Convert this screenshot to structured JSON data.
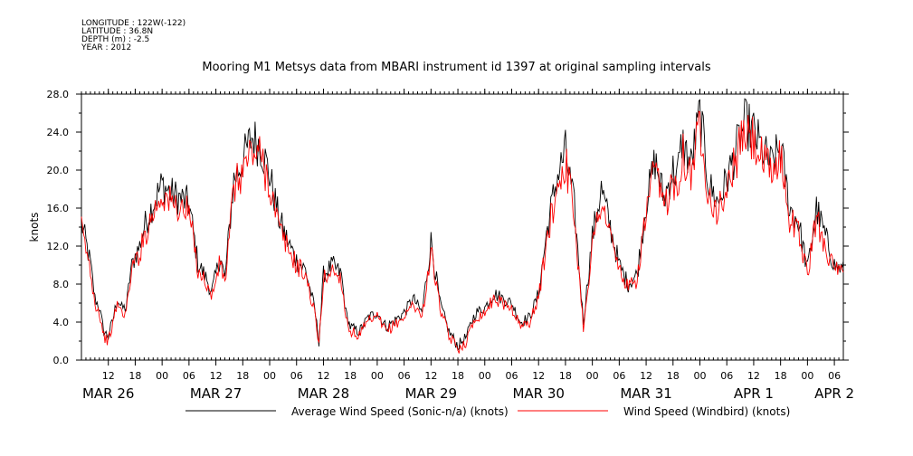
{
  "header": {
    "longitude": "LONGITUDE : 122W(-122)",
    "latitude": "LATITUDE : 36.8N",
    "depth": "DEPTH (m) : -2.5",
    "year": "YEAR : 2012"
  },
  "chart_data": {
    "type": "line",
    "title": "Mooring M1 Metsys data from MBARI instrument id 1397 at original sampling intervals",
    "ylabel": "knots",
    "xlabel": "",
    "ylim": [
      0,
      28
    ],
    "yticks": [
      "0.0",
      "4.0",
      "8.0",
      "12.0",
      "16.0",
      "20.0",
      "24.0",
      "28.0"
    ],
    "x_units": "hours since 2012-03-26 00:00",
    "xlim": [
      6,
      176
    ],
    "hour_ticks": [
      {
        "x": 12,
        "label": "12"
      },
      {
        "x": 18,
        "label": "18"
      },
      {
        "x": 24,
        "label": "00"
      },
      {
        "x": 30,
        "label": "06"
      },
      {
        "x": 36,
        "label": "12"
      },
      {
        "x": 42,
        "label": "18"
      },
      {
        "x": 48,
        "label": "00"
      },
      {
        "x": 54,
        "label": "06"
      },
      {
        "x": 60,
        "label": "12"
      },
      {
        "x": 66,
        "label": "18"
      },
      {
        "x": 72,
        "label": "00"
      },
      {
        "x": 78,
        "label": "06"
      },
      {
        "x": 84,
        "label": "12"
      },
      {
        "x": 90,
        "label": "18"
      },
      {
        "x": 96,
        "label": "00"
      },
      {
        "x": 102,
        "label": "06"
      },
      {
        "x": 108,
        "label": "12"
      },
      {
        "x": 114,
        "label": "18"
      },
      {
        "x": 120,
        "label": "00"
      },
      {
        "x": 126,
        "label": "06"
      },
      {
        "x": 132,
        "label": "12"
      },
      {
        "x": 138,
        "label": "18"
      },
      {
        "x": 144,
        "label": "00"
      },
      {
        "x": 150,
        "label": "06"
      },
      {
        "x": 156,
        "label": "12"
      },
      {
        "x": 162,
        "label": "18"
      },
      {
        "x": 168,
        "label": "00"
      },
      {
        "x": 174,
        "label": "06"
      }
    ],
    "date_labels": [
      {
        "x": 12,
        "label": "MAR 26"
      },
      {
        "x": 36,
        "label": "MAR 27"
      },
      {
        "x": 60,
        "label": "MAR 28"
      },
      {
        "x": 84,
        "label": "MAR 29"
      },
      {
        "x": 108,
        "label": "MAR 30"
      },
      {
        "x": 132,
        "label": "MAR 31"
      },
      {
        "x": 156,
        "label": "APR  1"
      },
      {
        "x": 174,
        "label": "APR  2"
      }
    ],
    "series": [
      {
        "name": "Average Wind Speed (Sonic-n/a) (knots)",
        "color": "#000000",
        "x": [
          6,
          8,
          9,
          10,
          11,
          12,
          13,
          14,
          15,
          16,
          17,
          18,
          19,
          20,
          22,
          24,
          26,
          28,
          30,
          32,
          34,
          35,
          36,
          37,
          38,
          40,
          42,
          44,
          46,
          48,
          50,
          52,
          54,
          56,
          58,
          59,
          60,
          62,
          64,
          65,
          66,
          67,
          68,
          70,
          72,
          74,
          76,
          78,
          80,
          82,
          84,
          86,
          88,
          90,
          92,
          93,
          94,
          96,
          98,
          100,
          102,
          104,
          106,
          108,
          110,
          112,
          114,
          116,
          118,
          120,
          122,
          124,
          126,
          128,
          130,
          132,
          134,
          136,
          138,
          139,
          140,
          142,
          144,
          146,
          148,
          150,
          152,
          154,
          156,
          158,
          160,
          162,
          164,
          166,
          168,
          170,
          172,
          174,
          176
        ],
        "values": [
          14.5,
          10.2,
          6.5,
          5.5,
          3.0,
          2.5,
          4.2,
          6.5,
          5.5,
          5.5,
          9.5,
          11.0,
          12.0,
          14.0,
          16.5,
          18.5,
          17.5,
          17.0,
          16.5,
          10.2,
          8.5,
          7.0,
          9.0,
          11.0,
          8.5,
          19.0,
          21.0,
          23.5,
          22.5,
          19.5,
          15.0,
          12.5,
          10.5,
          9.5,
          5.5,
          2.0,
          9.0,
          10.0,
          9.0,
          5.0,
          3.5,
          3.2,
          3.0,
          4.5,
          5.0,
          3.5,
          4.2,
          5.0,
          6.5,
          5.0,
          12.5,
          6.0,
          3.0,
          1.5,
          2.5,
          4.0,
          5.0,
          5.5,
          7.0,
          6.5,
          6.0,
          4.0,
          4.5,
          7.0,
          14.0,
          19.0,
          22.0,
          16.0,
          4.0,
          13.0,
          18.0,
          14.0,
          10.0,
          8.0,
          9.0,
          16.5,
          21.0,
          17.0,
          20.0,
          19.5,
          23.0,
          20.5,
          26.0,
          18.5,
          16.5,
          19.0,
          22.0,
          25.0,
          24.0,
          22.0,
          20.5,
          22.5,
          16.0,
          14.5,
          9.5,
          16.0,
          13.0,
          10.0,
          9.5
        ]
      },
      {
        "name": "Wind Speed (Windbird) (knots)",
        "color": "#ff0000",
        "x": [
          6,
          8,
          9,
          10,
          11,
          12,
          13,
          14,
          15,
          16,
          17,
          18,
          19,
          20,
          22,
          24,
          26,
          28,
          30,
          32,
          34,
          35,
          36,
          37,
          38,
          40,
          42,
          44,
          46,
          48,
          50,
          52,
          54,
          56,
          58,
          59,
          60,
          62,
          64,
          65,
          66,
          67,
          68,
          70,
          72,
          74,
          76,
          78,
          80,
          82,
          84,
          86,
          88,
          90,
          92,
          93,
          94,
          96,
          98,
          100,
          102,
          104,
          106,
          108,
          110,
          112,
          114,
          116,
          118,
          120,
          122,
          124,
          126,
          128,
          130,
          132,
          134,
          136,
          138,
          139,
          140,
          142,
          144,
          146,
          148,
          150,
          152,
          154,
          156,
          158,
          160,
          162,
          164,
          166,
          168,
          170,
          172,
          174,
          176
        ],
        "values": [
          13.8,
          9.5,
          6.0,
          5.0,
          2.5,
          2.0,
          3.8,
          6.0,
          5.0,
          5.0,
          9.0,
          10.5,
          11.2,
          13.0,
          15.5,
          17.5,
          16.5,
          16.0,
          15.5,
          9.6,
          8.0,
          6.5,
          8.5,
          10.4,
          8.0,
          18.0,
          20.0,
          22.0,
          21.5,
          18.5,
          14.0,
          11.8,
          10.0,
          9.0,
          5.0,
          1.6,
          8.5,
          9.5,
          8.5,
          4.6,
          3.0,
          2.8,
          2.6,
          4.0,
          4.5,
          3.0,
          3.8,
          4.5,
          6.0,
          4.5,
          11.5,
          5.5,
          2.5,
          1.2,
          2.0,
          3.5,
          4.5,
          5.0,
          6.5,
          6.0,
          5.5,
          3.5,
          4.0,
          6.5,
          13.0,
          18.0,
          21.0,
          15.0,
          3.5,
          12.0,
          17.0,
          13.0,
          9.5,
          7.5,
          8.5,
          15.5,
          20.0,
          16.0,
          19.0,
          18.5,
          22.0,
          19.5,
          25.0,
          17.5,
          15.5,
          18.0,
          21.0,
          24.0,
          23.0,
          21.0,
          19.5,
          21.5,
          15.0,
          13.5,
          9.0,
          15.0,
          12.0,
          9.5,
          9.0
        ]
      }
    ]
  }
}
